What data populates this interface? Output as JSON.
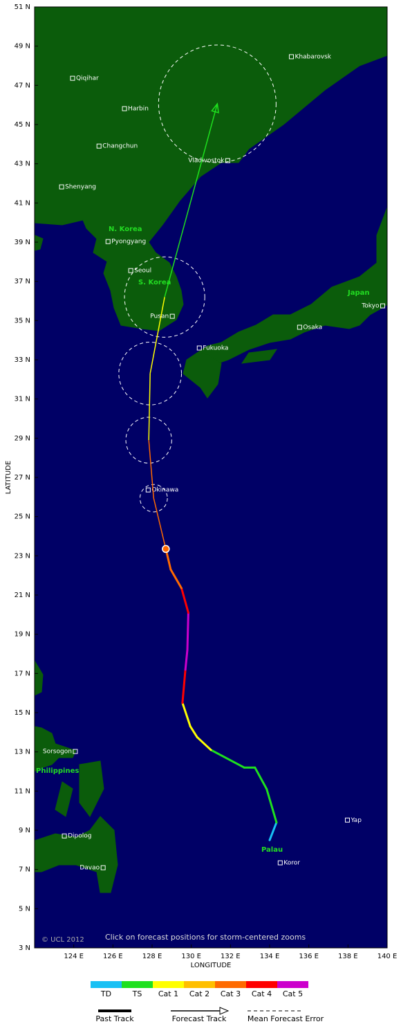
{
  "map": {
    "type": "map",
    "xlabel": "LONGITUDE",
    "ylabel": "LATITUDE",
    "xlim": [
      122,
      140
    ],
    "ylim": [
      3,
      51
    ],
    "xticks": [
      {
        "value": 124,
        "label": "124 E"
      },
      {
        "value": 126,
        "label": "126 E"
      },
      {
        "value": 128,
        "label": "128 E"
      },
      {
        "value": 130,
        "label": "130 E"
      },
      {
        "value": 132,
        "label": "132 E"
      },
      {
        "value": 134,
        "label": "134 E"
      },
      {
        "value": 136,
        "label": "136 E"
      },
      {
        "value": 138,
        "label": "138 E"
      },
      {
        "value": 140,
        "label": "140 E"
      }
    ],
    "yticks": [
      {
        "value": 3,
        "label": "3 N"
      },
      {
        "value": 5,
        "label": "5 N"
      },
      {
        "value": 7,
        "label": "7 N"
      },
      {
        "value": 9,
        "label": "9 N"
      },
      {
        "value": 11,
        "label": "11 N"
      },
      {
        "value": 13,
        "label": "13 N"
      },
      {
        "value": 15,
        "label": "15 N"
      },
      {
        "value": 17,
        "label": "17 N"
      },
      {
        "value": 19,
        "label": "19 N"
      },
      {
        "value": 21,
        "label": "21 N"
      },
      {
        "value": 23,
        "label": "23 N"
      },
      {
        "value": 25,
        "label": "25 N"
      },
      {
        "value": 27,
        "label": "27 N"
      },
      {
        "value": 29,
        "label": "29 N"
      },
      {
        "value": 31,
        "label": "31 N"
      },
      {
        "value": 33,
        "label": "33 N"
      },
      {
        "value": 35,
        "label": "35 N"
      },
      {
        "value": 37,
        "label": "37 N"
      },
      {
        "value": 39,
        "label": "39 N"
      },
      {
        "value": 41,
        "label": "41 N"
      },
      {
        "value": 43,
        "label": "43 N"
      },
      {
        "value": 45,
        "label": "45 N"
      },
      {
        "value": 47,
        "label": "47 N"
      },
      {
        "value": 49,
        "label": "49 N"
      },
      {
        "value": 51,
        "label": "51 N"
      }
    ],
    "categories": [
      {
        "name": "TD",
        "color": "#18c0f4"
      },
      {
        "name": "TS",
        "color": "#1ee01e"
      },
      {
        "name": "Cat 1",
        "color": "#ffff00"
      },
      {
        "name": "Cat 2",
        "color": "#ffbf00"
      },
      {
        "name": "Cat 3",
        "color": "#ff6a00"
      },
      {
        "name": "Cat 4",
        "color": "#ff0000"
      },
      {
        "name": "Cat 5",
        "color": "#cc00cc"
      }
    ],
    "past_track": {
      "lon": [
        134.0,
        134.35,
        133.85,
        133.25,
        132.7,
        131.0,
        130.3,
        129.95,
        129.55,
        129.7,
        129.8,
        129.85,
        129.5,
        128.95,
        128.7
      ],
      "lat": [
        8.5,
        9.4,
        11.1,
        12.2,
        12.2,
        13.1,
        13.75,
        14.3,
        15.5,
        17.2,
        18.2,
        20.1,
        21.35,
        22.3,
        23.35
      ],
      "category": [
        "TD",
        "TD",
        "TS",
        "TS",
        "TS",
        "TS",
        "Cat 1",
        "Cat 1",
        "Cat 1",
        "Cat 4",
        "Cat 5",
        "Cat 5",
        "Cat 4",
        "Cat 3",
        "Cat 3"
      ]
    },
    "forecast_track": {
      "lon": [
        128.08,
        127.83,
        127.9,
        128.64,
        131.33
      ],
      "lat": [
        25.94,
        28.9,
        32.3,
        36.2,
        46.06
      ],
      "category": [
        "Cat 3",
        "Cat 3",
        "Cat 1",
        "Cat 1",
        "TS"
      ],
      "error_radius": [
        0.7,
        1.17,
        1.6,
        2.05,
        3.0
      ]
    },
    "cities": [
      {
        "name": "Khabarovsk",
        "lon": 135.11,
        "lat": 48.46
      },
      {
        "name": "Qiqihar",
        "lon": 123.94,
        "lat": 47.36
      },
      {
        "name": "Harbin",
        "lon": 126.59,
        "lat": 45.81
      },
      {
        "name": "Changchun",
        "lon": 125.29,
        "lat": 43.9
      },
      {
        "name": "Vladivostok",
        "lon": 131.86,
        "lat": 43.16
      },
      {
        "name": "Shenyang",
        "lon": 123.38,
        "lat": 41.82
      },
      {
        "name": "Pyongyang",
        "lon": 125.75,
        "lat": 39.03
      },
      {
        "name": "Seoul",
        "lon": 126.91,
        "lat": 37.55
      },
      {
        "name": "Pusan",
        "lon": 129.03,
        "lat": 35.22
      },
      {
        "name": "Fukuoka",
        "lon": 130.41,
        "lat": 33.6
      },
      {
        "name": "Osaka",
        "lon": 135.53,
        "lat": 34.66
      },
      {
        "name": "Tokyo",
        "lon": 139.77,
        "lat": 35.75
      },
      {
        "name": "Okinawa",
        "lon": 127.8,
        "lat": 26.36
      },
      {
        "name": "Sorsogon",
        "lon": 124.08,
        "lat": 13.02
      },
      {
        "name": "Dipolog",
        "lon": 123.52,
        "lat": 8.71
      },
      {
        "name": "Davao",
        "lon": 125.5,
        "lat": 7.09
      },
      {
        "name": "Yap",
        "lon": 137.97,
        "lat": 9.52
      },
      {
        "name": "Koror",
        "lon": 134.54,
        "lat": 7.34
      }
    ],
    "regions": [
      "N. Korea",
      "S. Korea",
      "Japan",
      "Philippines",
      "Palau"
    ],
    "copyright": "© UCL 2012",
    "note": "Click on forecast positions for storm-centered zooms",
    "legend": {
      "past": "Past Track",
      "forecast": "Forecast Track",
      "error": "Mean Forecast Error"
    }
  }
}
